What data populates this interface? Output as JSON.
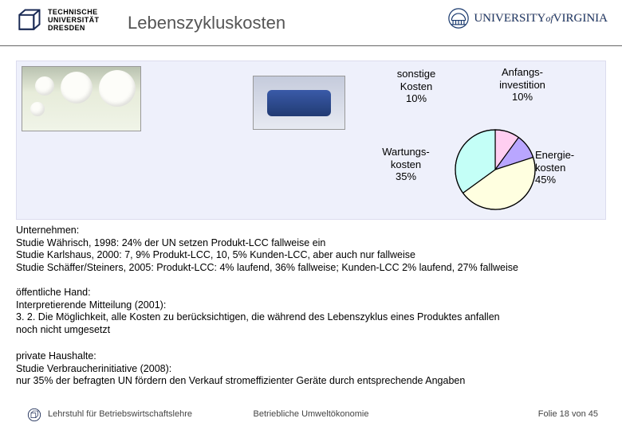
{
  "header": {
    "title": "Lebenszykluskosten",
    "logo_left_lines": [
      "TECHNISCHE",
      "UNIVERSITÄT",
      "DRESDEN"
    ],
    "logo_right_text": "UNIVERSITY",
    "logo_right_prefix_small": "of",
    "logo_right_suffix": "VIRGINIA"
  },
  "pie": {
    "type": "pie",
    "background_color": "#eef0fb",
    "radius": 50,
    "stroke": "#000000",
    "stroke_width": 1.2,
    "start_angle_deg": -90,
    "slices": [
      {
        "label_key": "sonstige",
        "value": 10,
        "fill": "#ffcef1"
      },
      {
        "label_key": "anfang",
        "value": 10,
        "fill": "#b9a6ff"
      },
      {
        "label_key": "energie",
        "value": 45,
        "fill": "#ffffe0"
      },
      {
        "label_key": "wartung",
        "value": 35,
        "fill": "#c4fff7"
      }
    ],
    "labels": {
      "sonstige": "sonstige\nKosten\n10%",
      "anfang": "Anfangs-\ninvestition\n10%",
      "wartung": "Wartungs-\nkosten\n35%",
      "energie": "Energie-\nkosten\n45%"
    },
    "label_fontsize": 13,
    "label_color": "#000000"
  },
  "sections": {
    "s1": "Unternehmen:\nStudie Währisch, 1998: 24% der UN setzen Produkt-LCC fallweise ein\nStudie Karlshaus, 2000: 7, 9% Produkt-LCC, 10, 5% Kunden-LCC, aber auch nur fallweise\nStudie Schäffer/Steiners, 2005: Produkt-LCC: 4% laufend, 36% fallweise; Kunden-LCC 2% laufend, 27% fallweise",
    "s2": "öffentliche Hand:\nInterpretierende Mitteilung (2001):\n3. 2. Die Möglichkeit, alle Kosten zu berücksichtigen, die während des Lebenszyklus eines Produktes anfallen\nnoch nicht umgesetzt",
    "s3": "private Haushalte:\nStudie Verbraucherinitiative (2008):\nnur 35% der befragten UN fördern den Verkauf stromeffizienter Geräte durch entsprechende Angaben"
  },
  "footer": {
    "left": "Lehrstuhl für Betriebswirtschaftslehre",
    "center": "Betriebliche Umweltökonomie",
    "right_prefix": "Folie ",
    "right_page": "18",
    "right_middle": " von ",
    "right_total": "45"
  },
  "colors": {
    "content_bg": "#eef0fb",
    "title_color": "#555555",
    "uva_text": "#1a3a6e"
  }
}
